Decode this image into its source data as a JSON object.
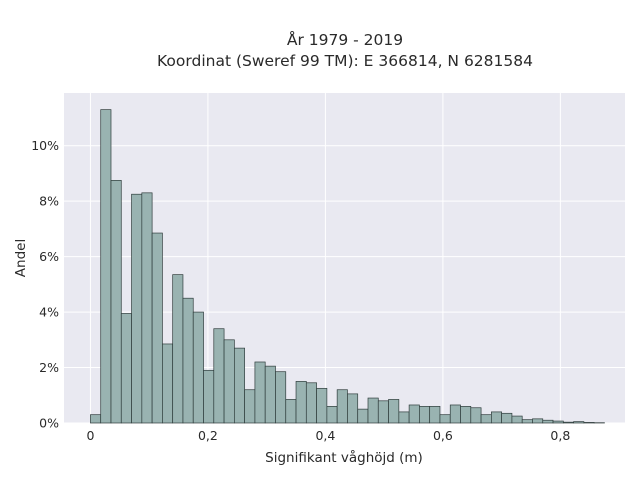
{
  "chart_data": {
    "type": "bar",
    "title_line1": "År 1979 - 2019",
    "title_line2": "Koordinat (Sweref 99 TM): E 366814, N 6281584",
    "xlabel": "Signifikant våghöjd (m)",
    "ylabel": "Andel",
    "xlim": [
      -0.045,
      0.91
    ],
    "ylim": [
      0,
      11.9
    ],
    "x_ticks": [
      0,
      0.2,
      0.4,
      0.6,
      0.8
    ],
    "x_tick_labels": [
      "0",
      "0,2",
      "0,4",
      "0,6",
      "0,8"
    ],
    "y_ticks": [
      0,
      2,
      4,
      6,
      8,
      10
    ],
    "y_tick_labels": [
      "0%",
      "2%",
      "4%",
      "6%",
      "8%",
      "10%"
    ],
    "grid": true,
    "bin_start": 0,
    "bin_width": 0.0175,
    "values": [
      0.3,
      11.3,
      8.75,
      3.95,
      8.25,
      8.3,
      6.85,
      2.85,
      5.35,
      4.5,
      4.0,
      1.9,
      3.4,
      3.0,
      2.7,
      1.2,
      2.2,
      2.05,
      1.85,
      0.85,
      1.5,
      1.45,
      1.25,
      0.6,
      1.2,
      1.05,
      0.5,
      0.9,
      0.8,
      0.85,
      0.4,
      0.65,
      0.6,
      0.6,
      0.3,
      0.65,
      0.6,
      0.55,
      0.3,
      0.4,
      0.35,
      0.25,
      0.12,
      0.15,
      0.1,
      0.07,
      0.03,
      0.05,
      0.02,
      0.01
    ],
    "colors": {
      "bar_fill": "#99b3b1",
      "bar_stroke": "#2f3d3c",
      "plot_bg": "#e9e9f1",
      "grid": "#ffffff"
    }
  }
}
